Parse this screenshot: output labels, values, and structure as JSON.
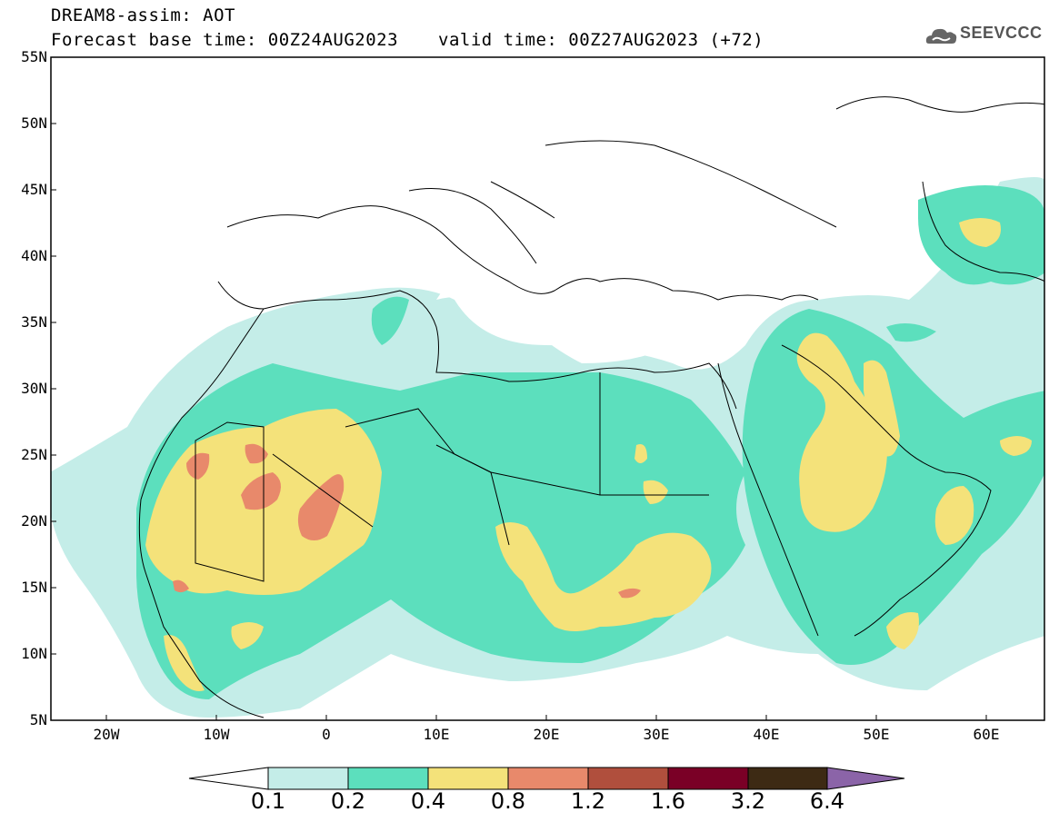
{
  "header": {
    "title": "DREAM8-assim: AOT",
    "base_time": "Forecast base time: 00Z24AUG2023",
    "valid_time": "valid time: 00Z27AUG2023 (+72)",
    "logo_text": "SEEVCCC"
  },
  "map": {
    "lat_labels": [
      "55N",
      "50N",
      "45N",
      "40N",
      "35N",
      "30N",
      "25N",
      "20N",
      "15N",
      "10N",
      "5N"
    ],
    "lon_labels": [
      "20W",
      "10W",
      "0",
      "10E",
      "20E",
      "30E",
      "40E",
      "50E",
      "60E"
    ],
    "extent": {
      "lon": [
        -25,
        65
      ],
      "lat": [
        5,
        55
      ]
    }
  },
  "colorbar": {
    "labels": [
      "0.1",
      "0.2",
      "0.4",
      "0.8",
      "1.2",
      "1.6",
      "3.2",
      "6.4"
    ],
    "colors": [
      "#ffffff",
      "#c4ede8",
      "#5cdfbd",
      "#f4e27a",
      "#e8896b",
      "#b04f3d",
      "#7a0026",
      "#3d2a14",
      "#8b64a8"
    ]
  }
}
